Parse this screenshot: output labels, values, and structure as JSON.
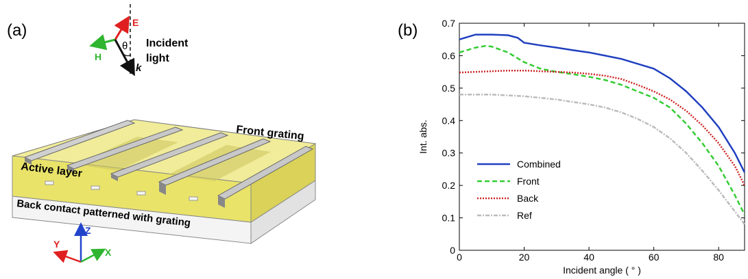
{
  "panel_a": {
    "label": "(a)",
    "light": {
      "e_label": "E",
      "h_label": "H",
      "k_label": "k",
      "theta_label": "θ",
      "caption_line1": "Incident",
      "caption_line2": "light"
    },
    "labels": {
      "front_grating": "Front grating",
      "active_layer": "Active layer",
      "back_contact": "Back contact patterned with grating"
    },
    "axes": {
      "x": "X",
      "y": "Y",
      "z": "Z"
    },
    "colors": {
      "active_layer": "#e9e36a",
      "bars": "#a9a9a9",
      "e_arrow": "#e02020",
      "h_arrow": "#2fb52f",
      "k_arrow": "#111111",
      "z_arrow": "#2244cc"
    }
  },
  "chart_data": {
    "type": "line",
    "panel_label": "(b)",
    "xlabel": "Incident angle ( ° )",
    "ylabel": "Int. abs.",
    "xlim": [
      0,
      88
    ],
    "ylim": [
      0,
      0.7
    ],
    "xticks": [
      0,
      20,
      40,
      60,
      80
    ],
    "yticks": [
      0,
      0.1,
      0.2,
      0.3,
      0.4,
      0.5,
      0.6,
      0.7
    ],
    "grid": false,
    "legend_position": "bottom-left",
    "series": [
      {
        "name": "Combined",
        "color": "#1f3fbf",
        "dash": "solid",
        "x": [
          0,
          5,
          10,
          15,
          18,
          20,
          25,
          30,
          35,
          40,
          45,
          50,
          55,
          60,
          65,
          70,
          75,
          80,
          85,
          88
        ],
        "y": [
          0.65,
          0.665,
          0.665,
          0.663,
          0.655,
          0.64,
          0.632,
          0.625,
          0.617,
          0.61,
          0.6,
          0.59,
          0.575,
          0.56,
          0.53,
          0.49,
          0.44,
          0.38,
          0.3,
          0.24
        ]
      },
      {
        "name": "Front",
        "color": "#33cc33",
        "dash": "dashed",
        "x": [
          0,
          5,
          8,
          10,
          15,
          20,
          25,
          30,
          35,
          40,
          45,
          50,
          55,
          60,
          65,
          70,
          75,
          80,
          85,
          88
        ],
        "y": [
          0.61,
          0.625,
          0.63,
          0.628,
          0.61,
          0.58,
          0.56,
          0.55,
          0.543,
          0.535,
          0.525,
          0.51,
          0.49,
          0.47,
          0.44,
          0.39,
          0.33,
          0.26,
          0.17,
          0.11
        ]
      },
      {
        "name": "Back",
        "color": "#cc2222",
        "dash": "dotted",
        "x": [
          0,
          5,
          10,
          15,
          20,
          25,
          30,
          35,
          40,
          45,
          50,
          55,
          60,
          65,
          70,
          75,
          80,
          85,
          88
        ],
        "y": [
          0.548,
          0.55,
          0.552,
          0.554,
          0.554,
          0.552,
          0.55,
          0.548,
          0.544,
          0.538,
          0.528,
          0.51,
          0.49,
          0.465,
          0.43,
          0.385,
          0.33,
          0.26,
          0.2
        ]
      },
      {
        "name": "Ref",
        "color": "#bbbbbb",
        "dash": "dashdot",
        "x": [
          0,
          10,
          20,
          30,
          40,
          45,
          50,
          55,
          60,
          65,
          70,
          75,
          80,
          85,
          88
        ],
        "y": [
          0.48,
          0.48,
          0.475,
          0.465,
          0.45,
          0.44,
          0.425,
          0.405,
          0.38,
          0.345,
          0.3,
          0.245,
          0.185,
          0.12,
          0.08
        ]
      }
    ]
  }
}
